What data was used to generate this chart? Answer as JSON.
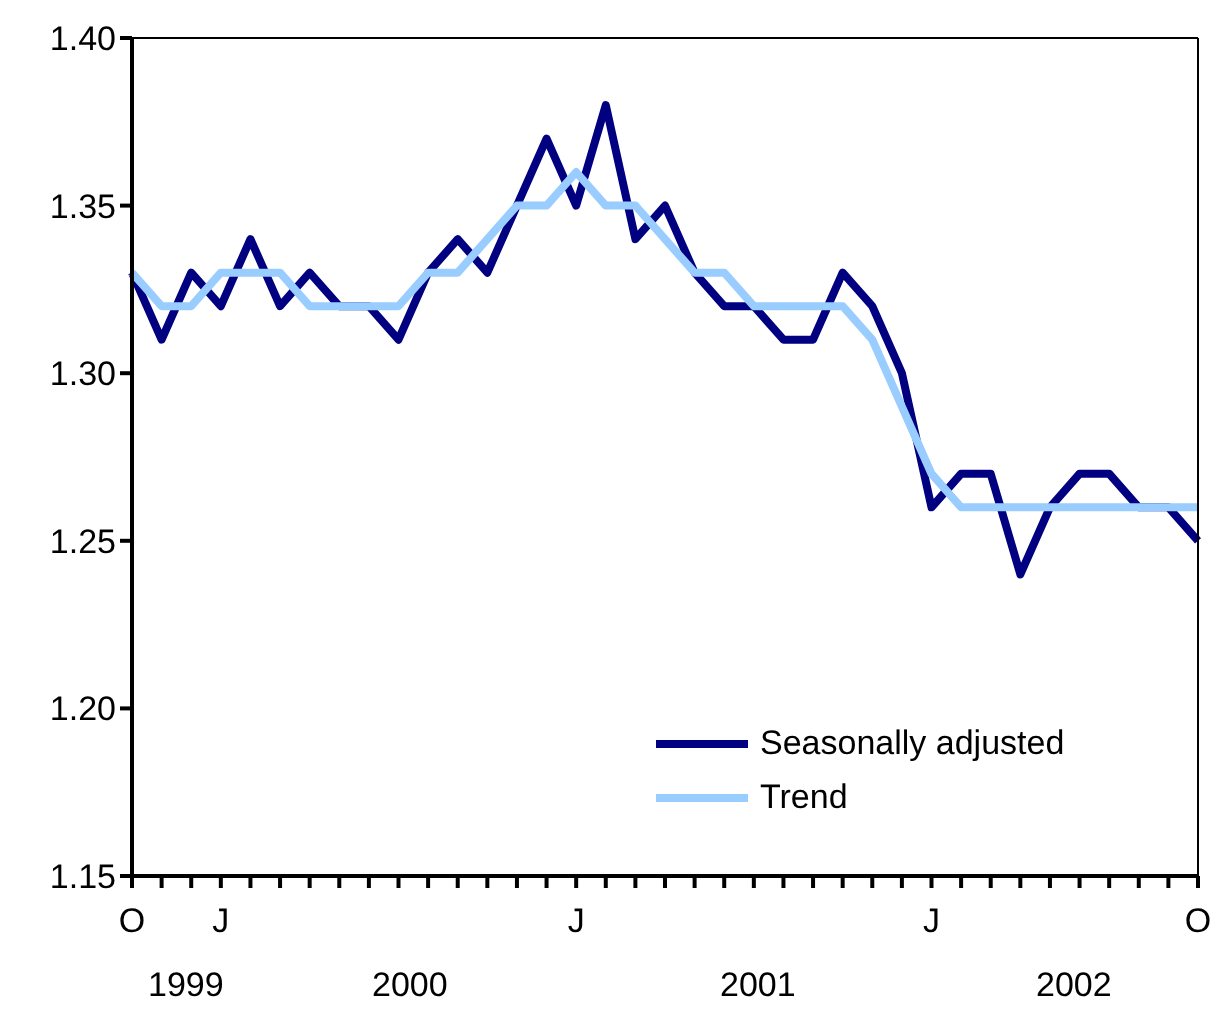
{
  "chart_data": {
    "type": "line",
    "categories": [
      "O",
      null,
      null,
      "J",
      null,
      null,
      null,
      null,
      null,
      null,
      null,
      null,
      null,
      null,
      null,
      "J",
      null,
      null,
      null,
      null,
      null,
      null,
      null,
      null,
      null,
      null,
      null,
      "J",
      null,
      null,
      null,
      null,
      null,
      null,
      null,
      null,
      "O"
    ],
    "series": [
      {
        "name": "Seasonally adjusted",
        "color": "#000080",
        "values": [
          1.33,
          1.31,
          1.33,
          1.32,
          1.34,
          1.32,
          1.33,
          1.32,
          1.32,
          1.31,
          1.33,
          1.34,
          1.33,
          1.35,
          1.37,
          1.35,
          1.38,
          1.34,
          1.35,
          1.33,
          1.32,
          1.32,
          1.31,
          1.31,
          1.33,
          1.32,
          1.3,
          1.26,
          1.27,
          1.27,
          1.24,
          1.26,
          1.27,
          1.27,
          1.26,
          1.26,
          1.25
        ]
      },
      {
        "name": "Trend",
        "color": "#99ccff",
        "values": [
          1.33,
          1.32,
          1.32,
          1.33,
          1.33,
          1.33,
          1.32,
          1.32,
          1.32,
          1.32,
          1.33,
          1.33,
          1.34,
          1.35,
          1.35,
          1.36,
          1.35,
          1.35,
          1.34,
          1.33,
          1.33,
          1.32,
          1.32,
          1.32,
          1.32,
          1.31,
          1.29,
          1.27,
          1.26,
          1.26,
          1.26,
          1.26,
          1.26,
          1.26,
          1.26,
          1.26,
          1.26
        ]
      }
    ],
    "ylim": [
      1.15,
      1.4
    ],
    "yticks": [
      1.15,
      {
        "value": 1.2,
        "label": "1.20"
      },
      1.25,
      {
        "value": 1.3,
        "label": "1.30"
      },
      1.35,
      {
        "value": 1.4,
        "label": "1.40"
      }
    ],
    "annotations": [
      "1999",
      "2000",
      "2001",
      "2002"
    ],
    "legend": "bottom right",
    "marker": "none",
    "line_style": "solid",
    "grid": false
  }
}
